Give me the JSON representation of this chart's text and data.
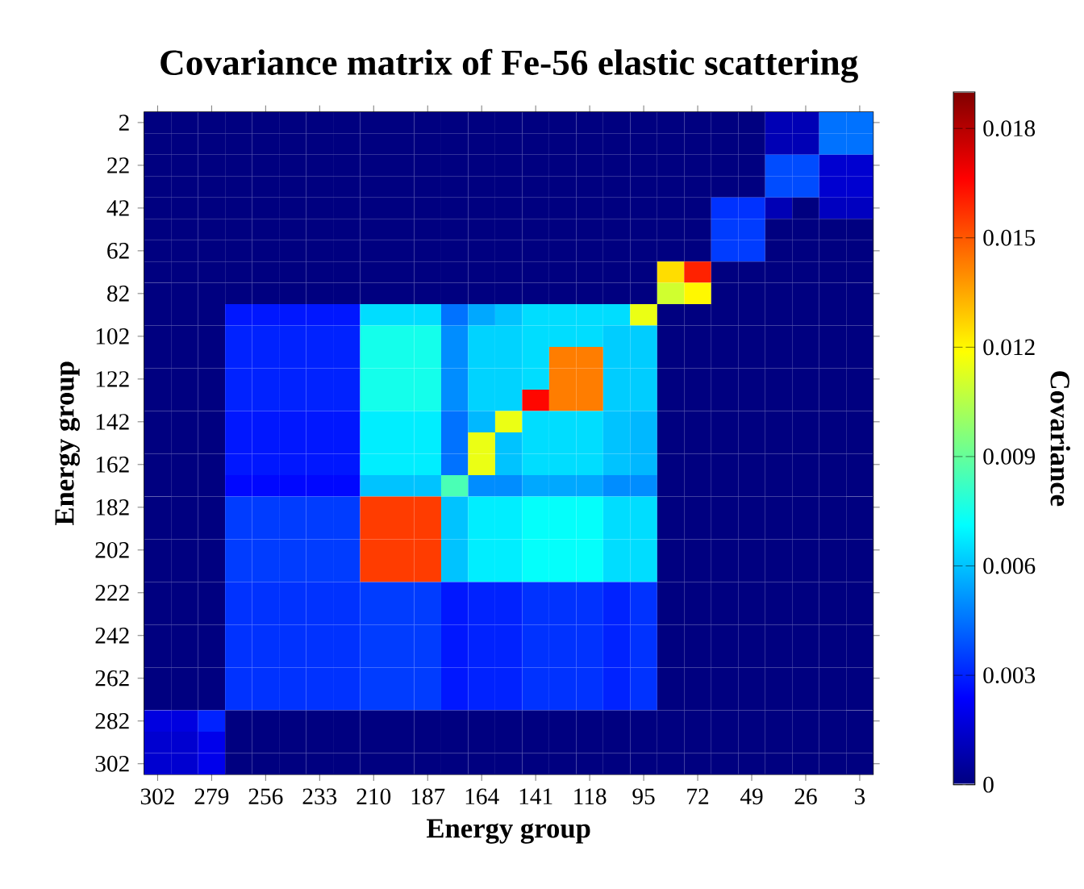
{
  "chart_data": {
    "type": "heatmap",
    "title": "Covariance matrix of Fe-56 elastic scattering",
    "xlabel": "Energy group",
    "ylabel": "Energy group",
    "clabel": "Covariance",
    "categories": [
      "302",
      null,
      "279",
      null,
      "256",
      null,
      "233",
      null,
      "210",
      null,
      "187",
      null,
      "164",
      null,
      "141",
      null,
      "118",
      null,
      "95",
      null,
      "72",
      null,
      "49",
      null,
      "26",
      null,
      "3"
    ],
    "y_categories": [
      "2",
      null,
      "22",
      null,
      "42",
      null,
      "62",
      null,
      "82",
      null,
      "102",
      null,
      "122",
      null,
      "142",
      null,
      "162",
      null,
      "182",
      null,
      "202",
      null,
      "222",
      null,
      "242",
      null,
      "262",
      null,
      "282",
      null,
      "302"
    ],
    "clim": [
      0,
      0.019
    ],
    "cticks": [
      0,
      0.003,
      0.006,
      0.009,
      0.012,
      0.015,
      0.018
    ],
    "cells": [
      [
        0,
        0,
        0,
        0,
        0,
        0,
        0,
        0,
        0,
        0,
        0,
        0,
        0,
        0,
        0,
        0,
        0,
        0,
        0,
        0,
        0,
        0,
        0,
        0.001,
        0.001,
        0.0045,
        0.0045
      ],
      [
        0,
        0,
        0,
        0,
        0,
        0,
        0,
        0,
        0,
        0,
        0,
        0,
        0,
        0,
        0,
        0,
        0,
        0,
        0,
        0,
        0,
        0,
        0,
        0.001,
        0.001,
        0.0045,
        0.0045
      ],
      [
        0,
        0,
        0,
        0,
        0,
        0,
        0,
        0,
        0,
        0,
        0,
        0,
        0,
        0,
        0,
        0,
        0,
        0,
        0,
        0,
        0,
        0,
        0,
        0.0038,
        0.0038,
        0.0015,
        0.0015
      ],
      [
        0,
        0,
        0,
        0,
        0,
        0,
        0,
        0,
        0,
        0,
        0,
        0,
        0,
        0,
        0,
        0,
        0,
        0,
        0,
        0,
        0,
        0,
        0,
        0.0038,
        0.0038,
        0.0015,
        0.0015
      ],
      [
        0,
        0,
        0,
        0,
        0,
        0,
        0,
        0,
        0,
        0,
        0,
        0,
        0,
        0,
        0,
        0,
        0,
        0,
        0,
        0,
        0,
        0.0033,
        0.0033,
        0.001,
        0,
        0.0012,
        0.0012
      ],
      [
        0,
        0,
        0,
        0,
        0,
        0,
        0,
        0,
        0,
        0,
        0,
        0,
        0,
        0,
        0,
        0,
        0,
        0,
        0,
        0,
        0,
        0.0035,
        0.0035,
        0,
        0,
        0,
        0
      ],
      [
        0,
        0,
        0,
        0,
        0,
        0,
        0,
        0,
        0,
        0,
        0,
        0,
        0,
        0,
        0,
        0,
        0,
        0,
        0,
        0,
        0,
        0.0035,
        0.0035,
        0,
        0,
        0,
        0
      ],
      [
        0,
        0,
        0,
        0,
        0,
        0,
        0,
        0,
        0,
        0,
        0,
        0,
        0,
        0,
        0,
        0,
        0,
        0,
        0,
        0.0125,
        0.016,
        0,
        0,
        0,
        0,
        0,
        0
      ],
      [
        0,
        0,
        0,
        0,
        0,
        0,
        0,
        0,
        0,
        0,
        0,
        0,
        0,
        0,
        0,
        0,
        0,
        0,
        0,
        0.011,
        0.012,
        0,
        0,
        0,
        0,
        0,
        0
      ],
      [
        0,
        0,
        0,
        0.0028,
        0.0028,
        0.0028,
        0.0028,
        0.0028,
        0.0065,
        0.0065,
        0.0065,
        0.0045,
        0.0055,
        0.006,
        0.0065,
        0.0065,
        0.0065,
        0.0065,
        0.0115,
        0,
        0,
        0,
        0,
        0,
        0,
        0,
        0
      ],
      [
        0,
        0,
        0,
        0.003,
        0.003,
        0.003,
        0.003,
        0.003,
        0.0075,
        0.0075,
        0.0075,
        0.005,
        0.0063,
        0.0063,
        0.0065,
        0.0065,
        0.0065,
        0.0062,
        0.0062,
        0,
        0,
        0,
        0,
        0,
        0,
        0,
        0
      ],
      [
        0,
        0,
        0,
        0.003,
        0.003,
        0.003,
        0.003,
        0.003,
        0.0075,
        0.0075,
        0.0075,
        0.005,
        0.0063,
        0.0063,
        0.0065,
        0.0143,
        0.0143,
        0.0062,
        0.0062,
        0,
        0,
        0,
        0,
        0,
        0,
        0,
        0
      ],
      [
        0,
        0,
        0,
        0.003,
        0.003,
        0.003,
        0.003,
        0.003,
        0.0075,
        0.0075,
        0.0075,
        0.005,
        0.0063,
        0.0063,
        0.0065,
        0.0143,
        0.0143,
        0.0062,
        0.0062,
        0,
        0,
        0,
        0,
        0,
        0,
        0,
        0
      ],
      [
        0,
        0,
        0,
        0.003,
        0.003,
        0.003,
        0.003,
        0.003,
        0.0075,
        0.0075,
        0.0075,
        0.005,
        0.0063,
        0.0063,
        0.0165,
        0.0143,
        0.0143,
        0.0062,
        0.0062,
        0,
        0,
        0,
        0,
        0,
        0,
        0,
        0
      ],
      [
        0,
        0,
        0,
        0.0028,
        0.0028,
        0.0028,
        0.0028,
        0.0028,
        0.0068,
        0.0068,
        0.0068,
        0.0045,
        0.0058,
        0.0115,
        0.0065,
        0.0065,
        0.0065,
        0.006,
        0.0058,
        0,
        0,
        0,
        0,
        0,
        0,
        0,
        0
      ],
      [
        0,
        0,
        0,
        0.0028,
        0.0028,
        0.0028,
        0.0028,
        0.0028,
        0.0068,
        0.0068,
        0.0068,
        0.0045,
        0.0115,
        0.006,
        0.0065,
        0.0065,
        0.0065,
        0.006,
        0.0058,
        0,
        0,
        0,
        0,
        0,
        0,
        0,
        0
      ],
      [
        0,
        0,
        0,
        0.0028,
        0.0028,
        0.0028,
        0.0028,
        0.0028,
        0.0068,
        0.0068,
        0.0068,
        0.0045,
        0.0115,
        0.006,
        0.0065,
        0.0065,
        0.0065,
        0.006,
        0.0058,
        0,
        0,
        0,
        0,
        0,
        0,
        0,
        0
      ],
      [
        0,
        0,
        0,
        0.0025,
        0.0025,
        0.0025,
        0.0025,
        0.0025,
        0.006,
        0.006,
        0.006,
        0.0085,
        0.005,
        0.005,
        0.0055,
        0.0055,
        0.0055,
        0.005,
        0.005,
        0,
        0,
        0,
        0,
        0,
        0,
        0,
        0
      ],
      [
        0,
        0,
        0,
        0.0035,
        0.0035,
        0.0035,
        0.0035,
        0.0035,
        0.0155,
        0.0155,
        0.0155,
        0.006,
        0.0068,
        0.0068,
        0.0072,
        0.0072,
        0.0072,
        0.0065,
        0.0065,
        0,
        0,
        0,
        0,
        0,
        0,
        0,
        0
      ],
      [
        0,
        0,
        0,
        0.0035,
        0.0035,
        0.0035,
        0.0035,
        0.0035,
        0.0155,
        0.0155,
        0.0155,
        0.006,
        0.0068,
        0.0068,
        0.0072,
        0.0072,
        0.0072,
        0.0065,
        0.0065,
        0,
        0,
        0,
        0,
        0,
        0,
        0,
        0
      ],
      [
        0,
        0,
        0,
        0.0035,
        0.0035,
        0.0035,
        0.0035,
        0.0035,
        0.0155,
        0.0155,
        0.0155,
        0.006,
        0.0068,
        0.0068,
        0.0072,
        0.0072,
        0.0072,
        0.0065,
        0.0065,
        0,
        0,
        0,
        0,
        0,
        0,
        0,
        0
      ],
      [
        0,
        0,
        0,
        0.0035,
        0.0035,
        0.0035,
        0.0035,
        0.0035,
        0.0155,
        0.0155,
        0.0155,
        0.006,
        0.0068,
        0.0068,
        0.0072,
        0.0072,
        0.0072,
        0.0065,
        0.0065,
        0,
        0,
        0,
        0,
        0,
        0,
        0,
        0
      ],
      [
        0,
        0,
        0,
        0.0033,
        0.0033,
        0.0033,
        0.0033,
        0.0033,
        0.0035,
        0.0035,
        0.0035,
        0.0028,
        0.003,
        0.003,
        0.0033,
        0.0033,
        0.0033,
        0.003,
        0.0033,
        0,
        0,
        0,
        0,
        0,
        0,
        0,
        0
      ],
      [
        0,
        0,
        0,
        0.0033,
        0.0033,
        0.0033,
        0.0033,
        0.0033,
        0.0035,
        0.0035,
        0.0035,
        0.0028,
        0.003,
        0.003,
        0.0033,
        0.0033,
        0.0033,
        0.003,
        0.0033,
        0,
        0,
        0,
        0,
        0,
        0,
        0,
        0
      ],
      [
        0,
        0,
        0,
        0.0033,
        0.0033,
        0.0033,
        0.0033,
        0.0033,
        0.0035,
        0.0035,
        0.0035,
        0.0028,
        0.003,
        0.003,
        0.0033,
        0.0033,
        0.0033,
        0.003,
        0.0033,
        0,
        0,
        0,
        0,
        0,
        0,
        0,
        0
      ],
      [
        0,
        0,
        0,
        0.0033,
        0.0033,
        0.0033,
        0.0033,
        0.0033,
        0.0035,
        0.0035,
        0.0035,
        0.0028,
        0.003,
        0.003,
        0.0033,
        0.0033,
        0.0033,
        0.003,
        0.0033,
        0,
        0,
        0,
        0,
        0,
        0,
        0,
        0
      ],
      [
        0,
        0,
        0,
        0.0033,
        0.0033,
        0.0033,
        0.0033,
        0.0033,
        0.0035,
        0.0035,
        0.0035,
        0.0028,
        0.003,
        0.003,
        0.0033,
        0.0033,
        0.0033,
        0.003,
        0.0033,
        0,
        0,
        0,
        0,
        0,
        0,
        0,
        0
      ],
      [
        0,
        0,
        0,
        0.0033,
        0.0033,
        0.0033,
        0.0033,
        0.0033,
        0.0035,
        0.0035,
        0.0035,
        0.0028,
        0.003,
        0.003,
        0.0033,
        0.0033,
        0.0033,
        0.003,
        0.0033,
        0,
        0,
        0,
        0,
        0,
        0,
        0,
        0
      ],
      [
        0.0018,
        0.0018,
        0.003,
        0,
        0,
        0,
        0,
        0,
        0,
        0,
        0,
        0,
        0,
        0,
        0,
        0,
        0,
        0,
        0,
        0,
        0,
        0,
        0,
        0,
        0,
        0,
        0
      ],
      [
        0.0015,
        0.0015,
        0.002,
        0,
        0,
        0,
        0,
        0,
        0,
        0,
        0,
        0,
        0,
        0,
        0,
        0,
        0,
        0,
        0,
        0,
        0,
        0,
        0,
        0,
        0,
        0,
        0
      ],
      [
        0.0015,
        0.0015,
        0.002,
        0,
        0,
        0,
        0,
        0,
        0,
        0,
        0,
        0,
        0,
        0,
        0,
        0,
        0,
        0,
        0,
        0,
        0,
        0,
        0,
        0,
        0,
        0,
        0
      ]
    ]
  }
}
